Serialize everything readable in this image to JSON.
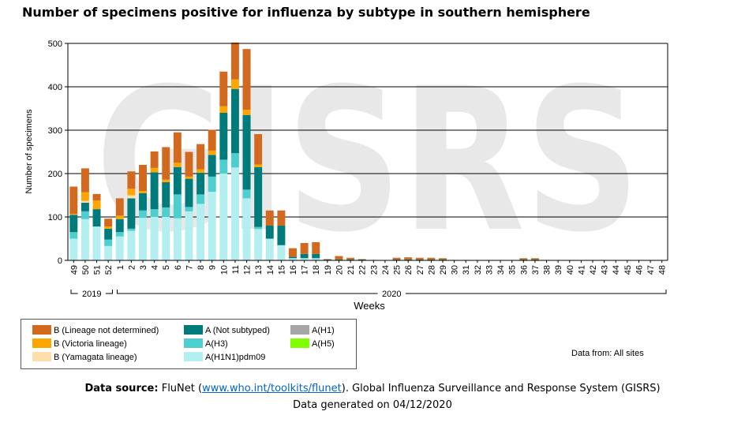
{
  "chart_data": {
    "type": "bar",
    "stacked": true,
    "title": "Number of specimens positive for influenza by subtype in southern hemisphere",
    "xlabel": "Weeks",
    "ylabel": "Number of specimens",
    "ylim": [
      0,
      500
    ],
    "yticks": [
      0,
      100,
      200,
      300,
      400,
      500
    ],
    "grid": true,
    "watermark": "GISRS",
    "year_groups": [
      {
        "label": "2019",
        "first_category": "49",
        "last_category": "52"
      },
      {
        "label": "2020",
        "first_category": "1",
        "last_category": "48"
      }
    ],
    "categories": [
      "49",
      "50",
      "51",
      "52",
      "1",
      "2",
      "3",
      "4",
      "5",
      "6",
      "7",
      "8",
      "9",
      "10",
      "11",
      "12",
      "13",
      "14",
      "15",
      "16",
      "17",
      "18",
      "19",
      "20",
      "21",
      "22",
      "23",
      "24",
      "25",
      "26",
      "27",
      "28",
      "29",
      "30",
      "31",
      "32",
      "33",
      "34",
      "35",
      "36",
      "37",
      "38",
      "39",
      "40",
      "41",
      "42",
      "43",
      "44",
      "45",
      "46",
      "47",
      "48"
    ],
    "series": [
      {
        "name": "A(H1N1)pdm09",
        "color": "#b3eff0",
        "values": [
          50,
          95,
          78,
          33,
          55,
          68,
          98,
          100,
          100,
          97,
          113,
          130,
          158,
          200,
          214,
          143,
          72,
          50,
          35,
          5,
          5,
          5,
          1,
          1,
          1,
          1,
          0,
          0,
          1,
          1,
          1,
          1,
          1,
          0,
          0,
          0,
          0,
          0,
          0,
          1,
          1,
          0,
          0,
          0,
          0,
          0,
          0,
          0,
          0,
          0,
          0,
          0
        ]
      },
      {
        "name": "A(H3)",
        "color": "#4dcfcf",
        "values": [
          15,
          18,
          0,
          15,
          10,
          5,
          17,
          18,
          22,
          55,
          10,
          22,
          35,
          32,
          33,
          20,
          5,
          0,
          0,
          0,
          0,
          0,
          0,
          0,
          0,
          0,
          0,
          0,
          0,
          0,
          0,
          0,
          0,
          0,
          0,
          0,
          0,
          0,
          0,
          0,
          0,
          0,
          0,
          0,
          0,
          0,
          0,
          0,
          0,
          0,
          0,
          0
        ]
      },
      {
        "name": "A(H1)",
        "color": "#a6a6a6",
        "values": [
          0,
          0,
          0,
          0,
          0,
          0,
          0,
          0,
          0,
          0,
          0,
          0,
          0,
          0,
          0,
          0,
          0,
          0,
          0,
          0,
          0,
          0,
          0,
          0,
          0,
          0,
          0,
          0,
          0,
          0,
          0,
          0,
          0,
          0,
          0,
          0,
          0,
          0,
          0,
          0,
          0,
          0,
          0,
          0,
          0,
          0,
          0,
          0,
          0,
          0,
          0,
          0
        ]
      },
      {
        "name": "A(H5)",
        "color": "#7fff00",
        "values": [
          0,
          0,
          0,
          0,
          0,
          0,
          0,
          0,
          0,
          0,
          0,
          0,
          0,
          0,
          0,
          0,
          0,
          0,
          0,
          0,
          0,
          0,
          0,
          0,
          0,
          0,
          0,
          0,
          0,
          0,
          0,
          0,
          0,
          0,
          0,
          0,
          0,
          0,
          0,
          0,
          0,
          0,
          0,
          0,
          0,
          0,
          0,
          0,
          0,
          0,
          0,
          0
        ]
      },
      {
        "name": "A (Not subtyped)",
        "color": "#007b7b",
        "values": [
          40,
          20,
          40,
          25,
          30,
          70,
          40,
          85,
          58,
          63,
          65,
          50,
          50,
          108,
          148,
          172,
          138,
          30,
          45,
          3,
          10,
          10,
          1,
          1,
          1,
          1,
          0,
          0,
          1,
          1,
          1,
          1,
          1,
          0,
          0,
          0,
          0,
          0,
          0,
          1,
          1,
          0,
          0,
          0,
          0,
          0,
          0,
          0,
          0,
          0,
          0,
          0
        ]
      },
      {
        "name": "B (Yamagata lineage)",
        "color": "#ffdead",
        "values": [
          0,
          4,
          0,
          0,
          0,
          7,
          0,
          0,
          0,
          0,
          0,
          0,
          0,
          0,
          0,
          0,
          0,
          0,
          0,
          0,
          0,
          0,
          0,
          0,
          0,
          0,
          0,
          0,
          0,
          0,
          0,
          0,
          0,
          0,
          0,
          0,
          0,
          0,
          0,
          0,
          0,
          0,
          0,
          0,
          0,
          0,
          0,
          0,
          0,
          0,
          0,
          0
        ]
      },
      {
        "name": "B (Victoria lineage)",
        "color": "#ffa500",
        "values": [
          2,
          20,
          20,
          5,
          8,
          15,
          5,
          10,
          6,
          10,
          5,
          8,
          10,
          15,
          22,
          12,
          6,
          0,
          0,
          0,
          0,
          0,
          0,
          0,
          0,
          0,
          0,
          0,
          0,
          0,
          0,
          0,
          0,
          0,
          0,
          0,
          0,
          0,
          0,
          0,
          0,
          0,
          0,
          0,
          0,
          0,
          0,
          0,
          0,
          0,
          0,
          0
        ]
      },
      {
        "name": "B (Lineage not determined)",
        "color": "#d2691e",
        "values": [
          63,
          55,
          15,
          18,
          40,
          40,
          60,
          38,
          75,
          70,
          57,
          58,
          48,
          80,
          85,
          140,
          70,
          35,
          35,
          20,
          25,
          27,
          1,
          8,
          4,
          1,
          1,
          0,
          4,
          5,
          4,
          4,
          3,
          1,
          1,
          0,
          0,
          0,
          0,
          3,
          3,
          0,
          0,
          0,
          0,
          0,
          0,
          0,
          0,
          0,
          0,
          0
        ]
      }
    ]
  },
  "legend": {
    "items": [
      {
        "label": "B (Lineage not determined)",
        "color": "#d2691e"
      },
      {
        "label": "B (Victoria lineage)",
        "color": "#ffa500"
      },
      {
        "label": "B (Yamagata lineage)",
        "color": "#ffdead"
      },
      {
        "label": "A (Not subtyped)",
        "color": "#007b7b"
      },
      {
        "label": "A(H3)",
        "color": "#4dcfcf"
      },
      {
        "label": "A(H1N1)pdm09",
        "color": "#b3eff0"
      },
      {
        "label": "A(H1)",
        "color": "#a6a6a6"
      },
      {
        "label": "A(H5)",
        "color": "#7fff00"
      }
    ]
  },
  "data_from": "Data from: All sites",
  "footer": {
    "source_label": "Data source:",
    "source_prefix": " FluNet (",
    "source_link": "www.who.int/toolkits/flunet",
    "source_suffix": "). Global Influenza Surveillance and Response System (GISRS)",
    "generated": "Data generated on 04/12/2020"
  }
}
